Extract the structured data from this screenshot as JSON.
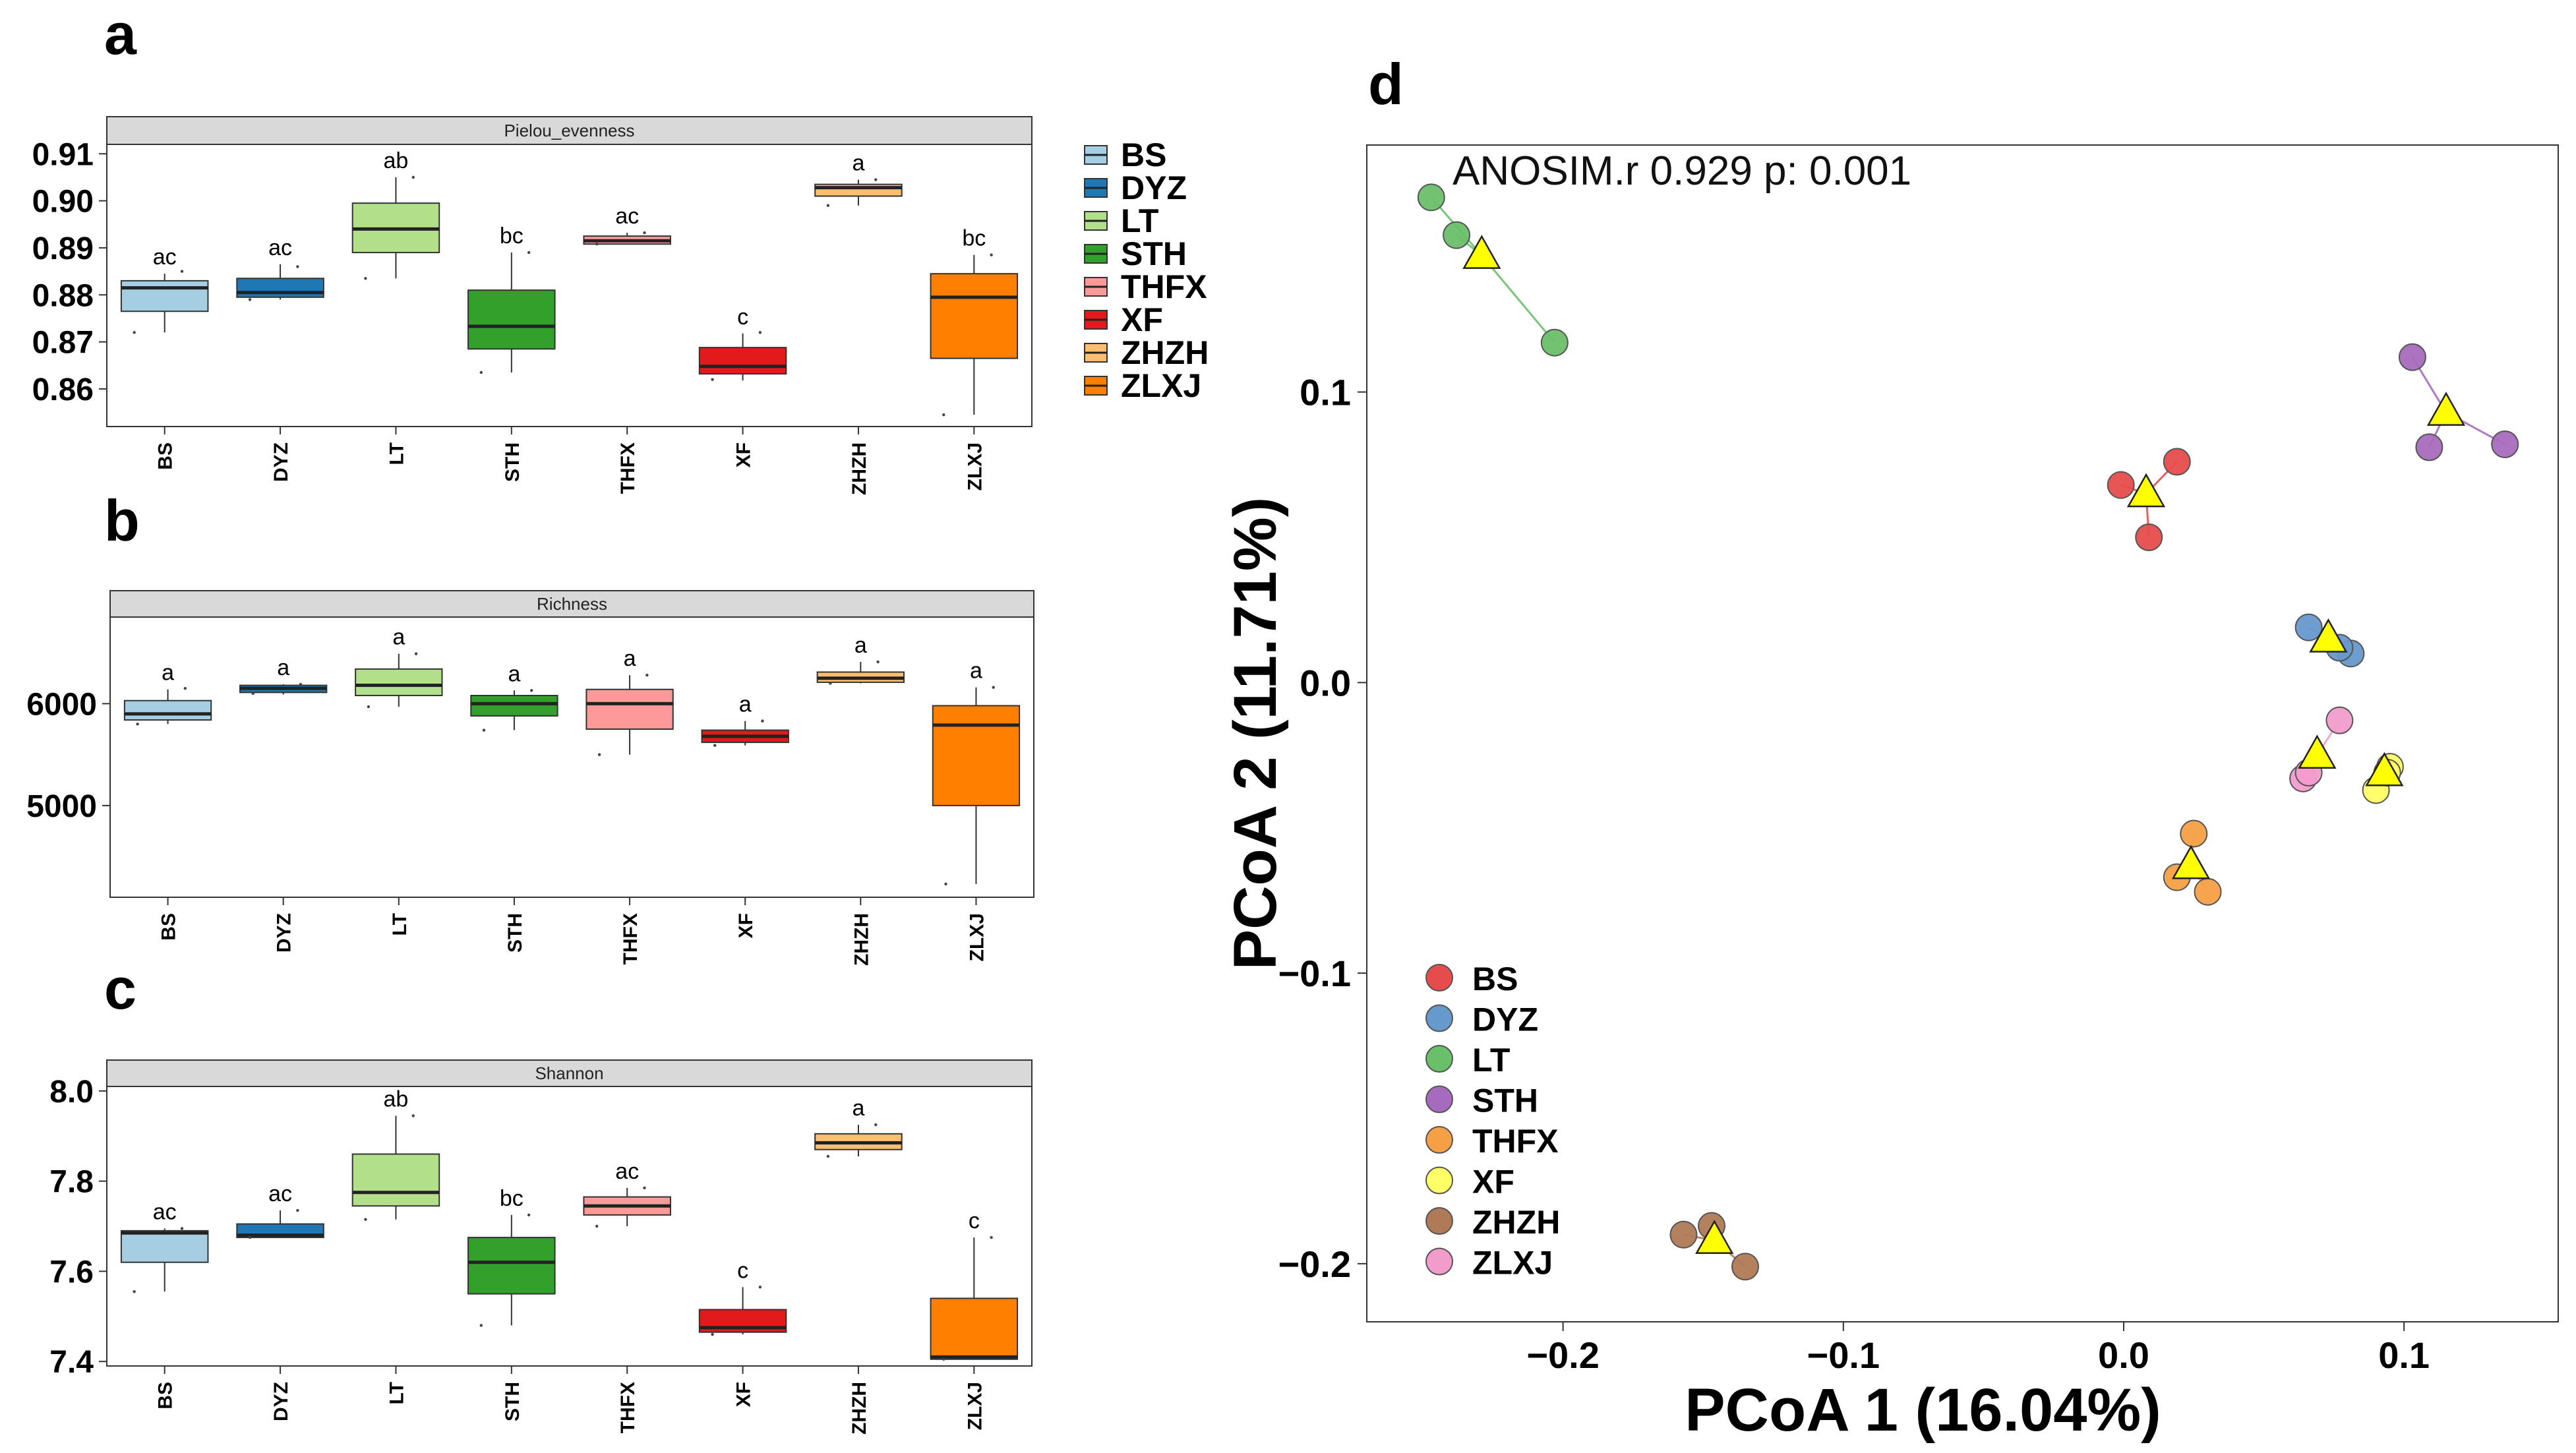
{
  "groups": [
    "BS",
    "DYZ",
    "LT",
    "STH",
    "THFX",
    "XF",
    "ZHZH",
    "ZLXJ"
  ],
  "colors": {
    "box": [
      "#a6cee3",
      "#1f78b4",
      "#b2df8a",
      "#33a02c",
      "#fb9a99",
      "#e31a1c",
      "#fdbf6f",
      "#ff7f00"
    ],
    "pcoa": [
      "#e74c4c",
      "#6699cc",
      "#6abf6a",
      "#a66bbd",
      "#f5a044",
      "#ffff66",
      "#b07a56",
      "#f29ccc"
    ],
    "centroid": "#ffff00",
    "panel_strip": "#d9d9d9"
  },
  "panel_labels": {
    "a": "a",
    "b": "b",
    "c": "c",
    "d": "d"
  },
  "legend_box": {
    "labels": [
      "BS",
      "DYZ",
      "LT",
      "STH",
      "THFX",
      "XF",
      "ZHZH",
      "ZLXJ"
    ]
  },
  "chart_data": [
    {
      "type": "box",
      "panel": "a",
      "title": "Pielou_evenness",
      "categories": [
        "BS",
        "DYZ",
        "LT",
        "STH",
        "THFX",
        "XF",
        "ZHZH",
        "ZLXJ"
      ],
      "ylim": [
        0.852,
        0.912
      ],
      "yticks": [
        0.86,
        0.87,
        0.88,
        0.89,
        0.9,
        0.91
      ],
      "ytick_labels": [
        "0.86",
        "0.87",
        "0.88",
        "0.89",
        "0.90",
        "0.91"
      ],
      "boxes": [
        {
          "min": 0.872,
          "q1": 0.8765,
          "median": 0.8815,
          "q3": 0.883,
          "max": 0.8845,
          "letter": "ac",
          "points": [
            0.872,
            0.885
          ]
        },
        {
          "min": 0.879,
          "q1": 0.8795,
          "median": 0.8805,
          "q3": 0.8835,
          "max": 0.8865,
          "letter": "ac",
          "points": [
            0.879,
            0.886
          ]
        },
        {
          "min": 0.8835,
          "q1": 0.889,
          "median": 0.894,
          "q3": 0.8995,
          "max": 0.905,
          "letter": "ab",
          "points": [
            0.8835,
            0.905
          ]
        },
        {
          "min": 0.8635,
          "q1": 0.8685,
          "median": 0.8733,
          "q3": 0.881,
          "max": 0.889,
          "letter": "bc",
          "points": [
            0.8635,
            0.889
          ]
        },
        {
          "min": 0.8908,
          "q1": 0.8908,
          "median": 0.8915,
          "q3": 0.8925,
          "max": 0.8932,
          "letter": "ac",
          "points": [
            0.8908,
            0.8932
          ]
        },
        {
          "min": 0.8618,
          "q1": 0.8632,
          "median": 0.8648,
          "q3": 0.8688,
          "max": 0.8718,
          "letter": "c",
          "points": [
            0.862,
            0.872
          ]
        },
        {
          "min": 0.899,
          "q1": 0.901,
          "median": 0.9028,
          "q3": 0.9035,
          "max": 0.9045,
          "letter": "a",
          "points": [
            0.899,
            0.9045
          ]
        },
        {
          "min": 0.8545,
          "q1": 0.8665,
          "median": 0.8795,
          "q3": 0.8845,
          "max": 0.8885,
          "letter": "bc",
          "points": [
            0.8545,
            0.8885
          ]
        }
      ]
    },
    {
      "type": "box",
      "panel": "b",
      "title": "Richness",
      "categories": [
        "BS",
        "DYZ",
        "LT",
        "STH",
        "THFX",
        "XF",
        "ZHZH",
        "ZLXJ"
      ],
      "ylim": [
        4100,
        6850
      ],
      "yticks": [
        5000,
        6000
      ],
      "ytick_labels": [
        "5000",
        "6000"
      ],
      "boxes": [
        {
          "min": 5800,
          "q1": 5840,
          "median": 5900,
          "q3": 6030,
          "max": 6140,
          "letter": "a",
          "points": [
            5800,
            6150
          ]
        },
        {
          "min": 6090,
          "q1": 6110,
          "median": 6150,
          "q3": 6180,
          "max": 6190,
          "letter": "a",
          "points": [
            6100,
            6190
          ]
        },
        {
          "min": 5970,
          "q1": 6080,
          "median": 6180,
          "q3": 6340,
          "max": 6490,
          "letter": "a",
          "points": [
            5970,
            6490
          ]
        },
        {
          "min": 5740,
          "q1": 5880,
          "median": 6000,
          "q3": 6080,
          "max": 6130,
          "letter": "a",
          "points": [
            5740,
            6130
          ]
        },
        {
          "min": 5500,
          "q1": 5750,
          "median": 6000,
          "q3": 6140,
          "max": 6280,
          "letter": "a",
          "points": [
            5500,
            6280
          ]
        },
        {
          "min": 5590,
          "q1": 5620,
          "median": 5680,
          "q3": 5740,
          "max": 5830,
          "letter": "a",
          "points": [
            5590,
            5830
          ]
        },
        {
          "min": 6200,
          "q1": 6210,
          "median": 6250,
          "q3": 6310,
          "max": 6410,
          "letter": "a",
          "points": [
            6200,
            6410
          ]
        },
        {
          "min": 4230,
          "q1": 5000,
          "median": 5790,
          "q3": 5980,
          "max": 6160,
          "letter": "a",
          "points": [
            4230,
            6160
          ]
        }
      ]
    },
    {
      "type": "box",
      "panel": "c",
      "title": "Shannon",
      "categories": [
        "BS",
        "DYZ",
        "LT",
        "STH",
        "THFX",
        "XF",
        "ZHZH",
        "ZLXJ"
      ],
      "ylim": [
        7.39,
        8.01
      ],
      "yticks": [
        7.4,
        7.6,
        7.8,
        8.0
      ],
      "ytick_labels": [
        "7.4",
        "7.6",
        "7.8",
        "8.0"
      ],
      "boxes": [
        {
          "min": 7.555,
          "q1": 7.62,
          "median": 7.685,
          "q3": 7.69,
          "max": 7.695,
          "letter": "ac",
          "points": [
            7.555,
            7.695
          ]
        },
        {
          "min": 7.675,
          "q1": 7.675,
          "median": 7.68,
          "q3": 7.705,
          "max": 7.735,
          "letter": "ac",
          "points": [
            7.675,
            7.735
          ]
        },
        {
          "min": 7.715,
          "q1": 7.745,
          "median": 7.775,
          "q3": 7.86,
          "max": 7.945,
          "letter": "ab",
          "points": [
            7.715,
            7.945
          ]
        },
        {
          "min": 7.48,
          "q1": 7.55,
          "median": 7.62,
          "q3": 7.675,
          "max": 7.725,
          "letter": "bc",
          "points": [
            7.48,
            7.725
          ]
        },
        {
          "min": 7.7,
          "q1": 7.725,
          "median": 7.745,
          "q3": 7.765,
          "max": 7.785,
          "letter": "ac",
          "points": [
            7.7,
            7.785
          ]
        },
        {
          "min": 7.46,
          "q1": 7.465,
          "median": 7.475,
          "q3": 7.515,
          "max": 7.565,
          "letter": "c",
          "points": [
            7.46,
            7.565
          ]
        },
        {
          "min": 7.855,
          "q1": 7.87,
          "median": 7.885,
          "q3": 7.905,
          "max": 7.925,
          "letter": "a",
          "points": [
            7.855,
            7.925
          ]
        },
        {
          "min": 7.405,
          "q1": 7.405,
          "median": 7.41,
          "q3": 7.54,
          "max": 7.675,
          "letter": "c",
          "points": [
            7.405,
            7.675
          ]
        }
      ]
    },
    {
      "type": "scatter",
      "panel": "d",
      "title": "ANOSIM.r 0.929 p: 0.001",
      "xlabel": "PCoA 1 (16.04%)",
      "ylabel": "PCoA 2 (11.71%)",
      "xlim": [
        -0.27,
        0.155
      ],
      "ylim": [
        -0.22,
        0.185
      ],
      "xticks": [
        -0.2,
        -0.1,
        0.0,
        0.1
      ],
      "xtick_labels": [
        "−0.2",
        "−0.1",
        "0.0",
        "0.1"
      ],
      "yticks": [
        -0.2,
        -0.1,
        0.0,
        0.1
      ],
      "ytick_labels": [
        "−0.2",
        "−0.1",
        "0.0",
        "0.1"
      ],
      "legend": [
        "BS",
        "DYZ",
        "LT",
        "STH",
        "THFX",
        "XF",
        "ZHZH",
        "ZLXJ"
      ],
      "legend_position": "bottom-left",
      "series": [
        {
          "name": "BS",
          "points": [
            [
              -0.001,
              0.068
            ],
            [
              0.019,
              0.076
            ],
            [
              0.009,
              0.05
            ]
          ],
          "centroid": [
            0.008,
            0.065
          ]
        },
        {
          "name": "DYZ",
          "points": [
            [
              0.066,
              0.019
            ],
            [
              0.081,
              0.01
            ],
            [
              0.077,
              0.012
            ]
          ],
          "centroid": [
            0.073,
            0.015
          ]
        },
        {
          "name": "LT",
          "points": [
            [
              -0.247,
              0.167
            ],
            [
              -0.238,
              0.154
            ],
            [
              -0.203,
              0.117
            ]
          ],
          "centroid": [
            -0.229,
            0.147
          ]
        },
        {
          "name": "STH",
          "points": [
            [
              0.103,
              0.112
            ],
            [
              0.109,
              0.081
            ],
            [
              0.136,
              0.082
            ]
          ],
          "centroid": [
            0.115,
            0.093
          ]
        },
        {
          "name": "THFX",
          "points": [
            [
              0.025,
              -0.052
            ],
            [
              0.019,
              -0.067
            ],
            [
              0.03,
              -0.072
            ]
          ],
          "centroid": [
            0.024,
            -0.063
          ]
        },
        {
          "name": "XF",
          "points": [
            [
              0.09,
              -0.037
            ],
            [
              0.095,
              -0.029
            ],
            [
              0.094,
              -0.031
            ]
          ],
          "centroid": [
            0.093,
            -0.031
          ]
        },
        {
          "name": "ZHZH",
          "points": [
            [
              -0.157,
              -0.19
            ],
            [
              -0.147,
              -0.187
            ],
            [
              -0.135,
              -0.201
            ]
          ],
          "centroid": [
            -0.146,
            -0.192
          ]
        },
        {
          "name": "ZLXJ",
          "points": [
            [
              0.064,
              -0.033
            ],
            [
              0.066,
              -0.031
            ],
            [
              0.077,
              -0.013
            ]
          ],
          "centroid": [
            0.069,
            -0.025
          ]
        }
      ]
    }
  ]
}
